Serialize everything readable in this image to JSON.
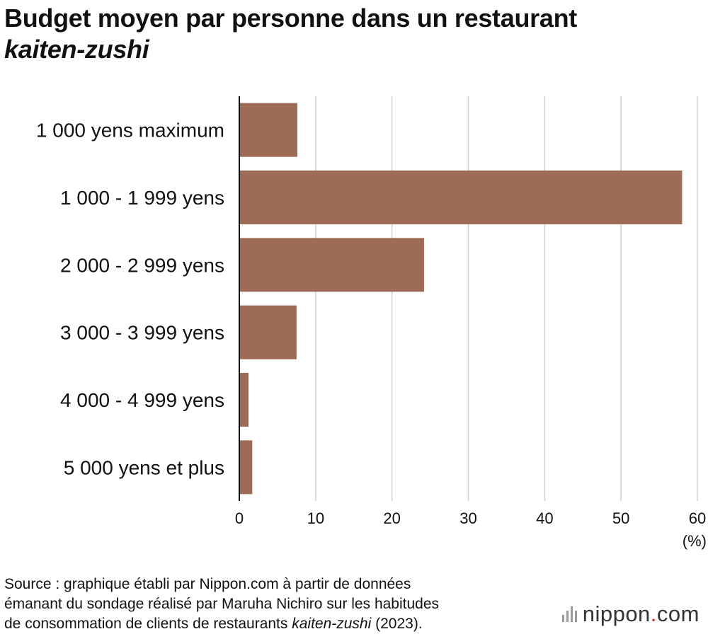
{
  "title": {
    "line1": "Budget moyen par personne dans un restaurant",
    "line2": "kaiten-zushi"
  },
  "chart_data": {
    "type": "bar",
    "orientation": "horizontal",
    "title": "Budget moyen par personne dans un restaurant kaiten-zushi",
    "categories": [
      "1 000 yens maximum",
      "1 000 - 1 999 yens",
      "2 000 - 2 999 yens",
      "3 000 - 3 999 yens",
      "4 000 - 4 999 yens",
      "5 000 yens et plus"
    ],
    "values": [
      7.6,
      58.0,
      24.2,
      7.5,
      1.2,
      1.7
    ],
    "xlim": [
      0,
      60
    ],
    "xticks": [
      0,
      10,
      20,
      30,
      40,
      50,
      60
    ],
    "xticklabels": [
      "0",
      "10",
      "20",
      "30",
      "40",
      "50",
      "60"
    ],
    "unit_label": "(%)",
    "bar_color": "#9e6b57",
    "grid": true
  },
  "source": {
    "line1": "Source : graphique établi par Nippon.com à partir de données",
    "line2": "émanant du sondage réalisé par Maruha Nichiro sur les habitudes",
    "line3_pre": "de consommation de clients de restaurants ",
    "line3_em": "kaiten-zushi",
    "line3_post": " (2023)."
  },
  "logo": {
    "text": "nippon",
    "dot": ".",
    "suffix": "com",
    "dot_color": "#d2232a"
  }
}
